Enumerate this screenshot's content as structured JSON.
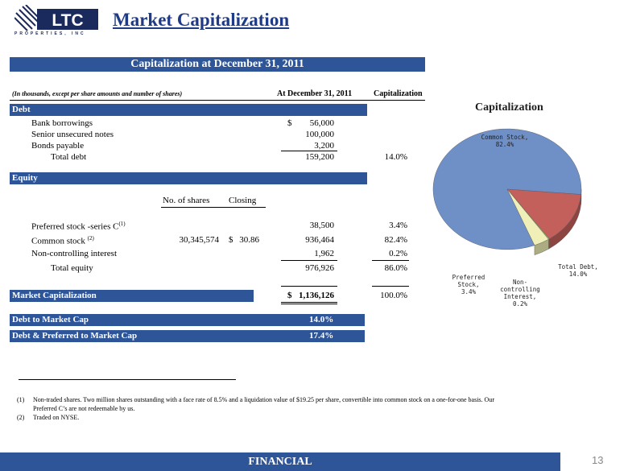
{
  "logo": {
    "name": "LTC",
    "tagline": "PROPERTIES, INC"
  },
  "page_title": "Market Capitalization",
  "cap_header": "Capitalization at December 31, 2011",
  "table_header": {
    "note": "(In thousands, except per share amounts and number of shares)",
    "col1": "At December 31, 2011",
    "col2": "Capitalization"
  },
  "debt": {
    "label": "Debt",
    "rows": [
      {
        "label": "Bank borrowings",
        "currency": "$",
        "value": "56,000"
      },
      {
        "label": "Senior unsecured notes",
        "value": "100,000"
      },
      {
        "label": "Bonds payable",
        "value": "3,200"
      }
    ],
    "total_label": "Total debt",
    "total_value": "159,200",
    "total_pct": "14.0%"
  },
  "equity": {
    "label": "Equity",
    "shares_header": "No. of shares",
    "closing_header": "Closing",
    "rows": [
      {
        "label": "Preferred stock -series C",
        "sup": "(1)",
        "shares": "",
        "closing_cur": "",
        "closing": "",
        "value": "38,500",
        "pct": "3.4%"
      },
      {
        "label": "Common stock",
        "sup": "(2)",
        "shares": "30,345,574",
        "closing_cur": "$",
        "closing": "30.86",
        "value": "936,464",
        "pct": "82.4%"
      },
      {
        "label": "Non-controlling interest",
        "sup": "",
        "shares": "",
        "closing_cur": "",
        "closing": "",
        "value": "1,962",
        "pct": "0.2%"
      }
    ],
    "total_label": "Total equity",
    "total_value": "976,926",
    "total_pct": "86.0%"
  },
  "market_cap": {
    "label": "Market Capitalization",
    "currency": "$",
    "value": "1,136,126",
    "pct": "100.0%"
  },
  "ratios": [
    {
      "label": "Debt to Market Cap",
      "value": "14.0%"
    },
    {
      "label": "Debt & Preferred to Market Cap",
      "value": "17.4%"
    }
  ],
  "chart_data": {
    "type": "pie",
    "title": "Capitalization",
    "categories": [
      "Common Stock",
      "Total Debt",
      "Non-controlling Interest",
      "Preferred Stock"
    ],
    "values": [
      82.4,
      14.0,
      0.2,
      3.4
    ],
    "labels": [
      "Common Stock, 82.4%",
      "Total Debt, 14.0%",
      "Non-controlling Interest, 0.2%",
      "Preferred Stock, 3.4%"
    ],
    "colors": [
      "#6f8fc7",
      "#c4605c",
      "#a5c46a",
      "#efefb7"
    ]
  },
  "footnotes": [
    {
      "num": "(1)",
      "text": "Non-traded shares.  Two million shares outstanding with a face rate of 8.5% and a liquidation value of $19.25 per share, convertible into common stock on a one-for-one basis.  Our",
      "text2": "Preferred C’s are not redeemable by us."
    },
    {
      "num": "(2)",
      "text": "Traded on NYSE."
    }
  ],
  "footer": "FINANCIAL",
  "page_number": "13"
}
